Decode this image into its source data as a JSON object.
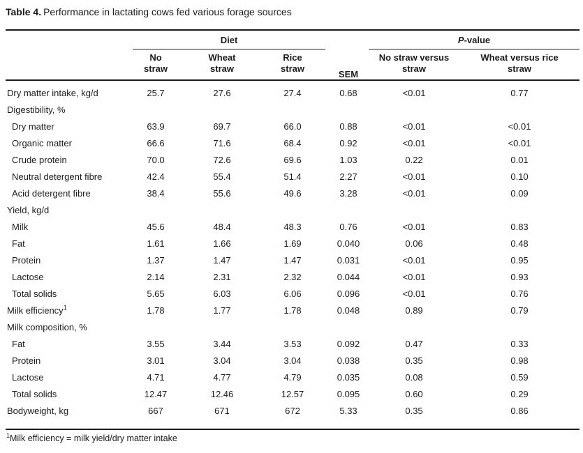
{
  "title": {
    "label": "Table 4.",
    "text": "Performance in lactating cows fed various forage sources"
  },
  "table": {
    "spanners": {
      "diet": "Diet",
      "pvalue_italic": "P",
      "pvalue_rest": "-value"
    },
    "columns": [
      {
        "id": "no-straw",
        "lines": [
          "No",
          "straw"
        ]
      },
      {
        "id": "wheat-straw",
        "lines": [
          "Wheat",
          "straw"
        ]
      },
      {
        "id": "rice-straw",
        "lines": [
          "Rice",
          "straw"
        ]
      },
      {
        "id": "sem",
        "lines": [
          "SEM"
        ]
      },
      {
        "id": "p-no-straw-vs-straw",
        "lines": [
          "No straw versus",
          "straw"
        ]
      },
      {
        "id": "p-wheat-vs-rice",
        "lines": [
          "Wheat versus rice",
          "straw"
        ]
      }
    ],
    "rows": [
      {
        "label": "Dry matter intake, kg/d",
        "indent": false,
        "values": [
          "25.7",
          "27.6",
          "27.4",
          "0.68",
          "<0.01",
          "0.77"
        ]
      },
      {
        "label": "Digestibility, %",
        "indent": false,
        "values": []
      },
      {
        "label": "Dry matter",
        "indent": true,
        "values": [
          "63.9",
          "69.7",
          "66.0",
          "0.88",
          "<0.01",
          "<0.01"
        ]
      },
      {
        "label": "Organic matter",
        "indent": true,
        "values": [
          "66.6",
          "71.6",
          "68.4",
          "0.92",
          "<0.01",
          "<0.01"
        ]
      },
      {
        "label": "Crude protein",
        "indent": true,
        "values": [
          "70.0",
          "72.6",
          "69.6",
          "1.03",
          "0.22",
          "0.01"
        ]
      },
      {
        "label": "Neutral detergent fibre",
        "indent": true,
        "values": [
          "42.4",
          "55.4",
          "51.4",
          "2.27",
          "<0.01",
          "0.10"
        ]
      },
      {
        "label": "Acid detergent fibre",
        "indent": true,
        "values": [
          "38.4",
          "55.6",
          "49.6",
          "3.28",
          "<0.01",
          "0.09"
        ]
      },
      {
        "label": "Yield, kg/d",
        "indent": false,
        "values": []
      },
      {
        "label": "Milk",
        "indent": true,
        "values": [
          "45.6",
          "48.4",
          "48.3",
          "0.76",
          "<0.01",
          "0.83"
        ]
      },
      {
        "label": "Fat",
        "indent": true,
        "values": [
          "1.61",
          "1.66",
          "1.69",
          "0.040",
          "0.06",
          "0.48"
        ]
      },
      {
        "label": "Protein",
        "indent": true,
        "values": [
          "1.37",
          "1.47",
          "1.47",
          "0.031",
          "<0.01",
          "0.95"
        ]
      },
      {
        "label": "Lactose",
        "indent": true,
        "values": [
          "2.14",
          "2.31",
          "2.32",
          "0.044",
          "<0.01",
          "0.93"
        ]
      },
      {
        "label": "Total solids",
        "indent": true,
        "values": [
          "5.65",
          "6.03",
          "6.06",
          "0.096",
          "<0.01",
          "0.76"
        ]
      },
      {
        "label": "Milk efficiency",
        "sup": "1",
        "indent": false,
        "values": [
          "1.78",
          "1.77",
          "1.78",
          "0.048",
          "0.89",
          "0.79"
        ]
      },
      {
        "label": "Milk composition, %",
        "indent": false,
        "values": []
      },
      {
        "label": "Fat",
        "indent": true,
        "values": [
          "3.55",
          "3.44",
          "3.53",
          "0.092",
          "0.47",
          "0.33"
        ]
      },
      {
        "label": "Protein",
        "indent": true,
        "values": [
          "3.01",
          "3.04",
          "3.04",
          "0.038",
          "0.35",
          "0.98"
        ]
      },
      {
        "label": "Lactose",
        "indent": true,
        "values": [
          "4.71",
          "4.77",
          "4.79",
          "0.035",
          "0.08",
          "0.59"
        ]
      },
      {
        "label": "Total solids",
        "indent": true,
        "values": [
          "12.47",
          "12.46",
          "12.57",
          "0.095",
          "0.60",
          "0.29"
        ]
      },
      {
        "label": "Bodyweight, kg",
        "indent": false,
        "values": [
          "667",
          "671",
          "672",
          "5.33",
          "0.35",
          "0.86"
        ]
      }
    ]
  },
  "footnote": {
    "sup": "1",
    "text": "Milk efficiency = milk yield/dry matter intake"
  }
}
